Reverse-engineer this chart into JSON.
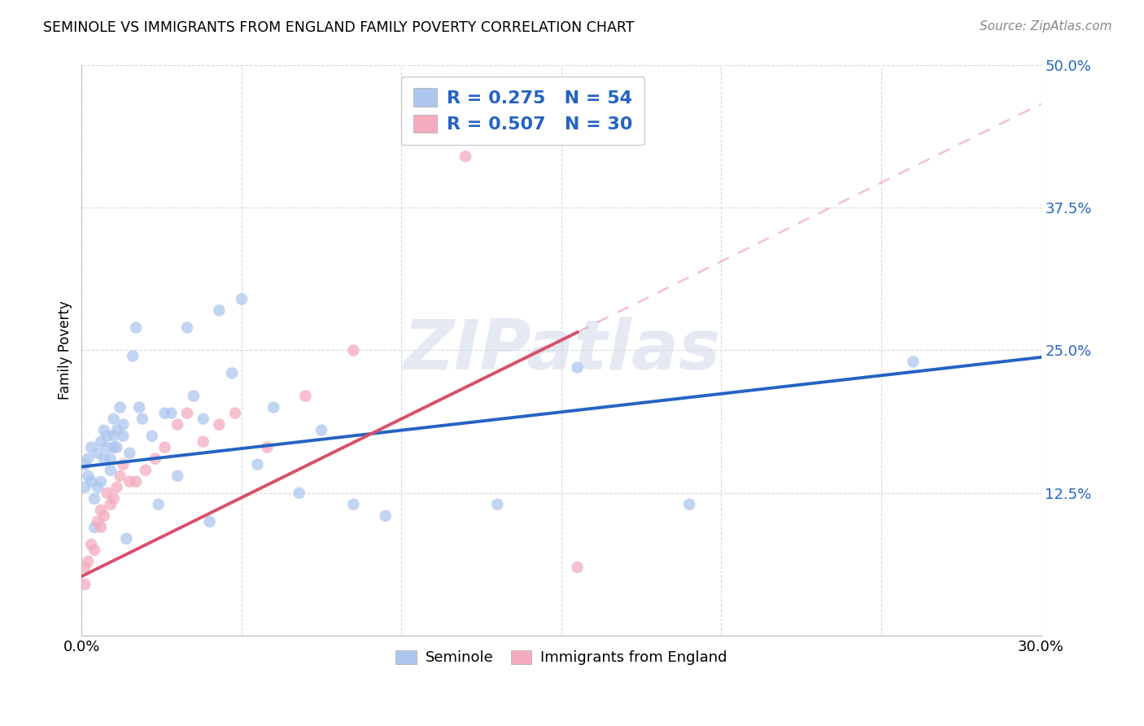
{
  "title": "SEMINOLE VS IMMIGRANTS FROM ENGLAND FAMILY POVERTY CORRELATION CHART",
  "source": "Source: ZipAtlas.com",
  "ylabel": "Family Poverty",
  "x_min": 0.0,
  "x_max": 0.3,
  "y_min": 0.0,
  "y_max": 0.5,
  "x_ticks": [
    0.0,
    0.05,
    0.1,
    0.15,
    0.2,
    0.25,
    0.3
  ],
  "x_tick_labels": [
    "0.0%",
    "",
    "",
    "",
    "",
    "",
    "30.0%"
  ],
  "y_ticks": [
    0.0,
    0.125,
    0.25,
    0.375,
    0.5
  ],
  "y_tick_labels": [
    "",
    "12.5%",
    "25.0%",
    "37.5%",
    "50.0%"
  ],
  "seminole_R": 0.275,
  "seminole_N": 54,
  "england_R": 0.507,
  "england_N": 30,
  "seminole_color": "#adc6ee",
  "england_color": "#f4abbe",
  "seminole_line_color": "#2563c4",
  "england_line_color": "#d94f6a",
  "watermark": "ZIPatlas",
  "seminole_x": [
    0.001,
    0.001,
    0.002,
    0.002,
    0.003,
    0.003,
    0.004,
    0.004,
    0.005,
    0.005,
    0.006,
    0.006,
    0.007,
    0.007,
    0.008,
    0.008,
    0.009,
    0.009,
    0.01,
    0.01,
    0.01,
    0.011,
    0.011,
    0.012,
    0.013,
    0.013,
    0.014,
    0.015,
    0.016,
    0.017,
    0.018,
    0.019,
    0.022,
    0.024,
    0.026,
    0.028,
    0.03,
    0.033,
    0.035,
    0.038,
    0.04,
    0.043,
    0.047,
    0.05,
    0.055,
    0.06,
    0.068,
    0.075,
    0.085,
    0.095,
    0.13,
    0.155,
    0.19,
    0.26
  ],
  "seminole_y": [
    0.15,
    0.13,
    0.155,
    0.14,
    0.165,
    0.135,
    0.12,
    0.095,
    0.16,
    0.13,
    0.17,
    0.135,
    0.18,
    0.155,
    0.175,
    0.165,
    0.155,
    0.145,
    0.19,
    0.175,
    0.165,
    0.18,
    0.165,
    0.2,
    0.185,
    0.175,
    0.085,
    0.16,
    0.245,
    0.27,
    0.2,
    0.19,
    0.175,
    0.115,
    0.195,
    0.195,
    0.14,
    0.27,
    0.21,
    0.19,
    0.1,
    0.285,
    0.23,
    0.295,
    0.15,
    0.2,
    0.125,
    0.18,
    0.115,
    0.105,
    0.115,
    0.235,
    0.115,
    0.24
  ],
  "england_x": [
    0.001,
    0.001,
    0.002,
    0.003,
    0.004,
    0.005,
    0.006,
    0.006,
    0.007,
    0.008,
    0.009,
    0.01,
    0.011,
    0.012,
    0.013,
    0.015,
    0.017,
    0.02,
    0.023,
    0.026,
    0.03,
    0.033,
    0.038,
    0.043,
    0.048,
    0.058,
    0.07,
    0.085,
    0.12,
    0.155
  ],
  "england_y": [
    0.06,
    0.045,
    0.065,
    0.08,
    0.075,
    0.1,
    0.095,
    0.11,
    0.105,
    0.125,
    0.115,
    0.12,
    0.13,
    0.14,
    0.15,
    0.135,
    0.135,
    0.145,
    0.155,
    0.165,
    0.185,
    0.195,
    0.17,
    0.185,
    0.195,
    0.165,
    0.21,
    0.25,
    0.42,
    0.06
  ],
  "seminole_intercept": 0.148,
  "seminole_slope": 0.32,
  "england_intercept": 0.052,
  "england_slope": 1.38
}
